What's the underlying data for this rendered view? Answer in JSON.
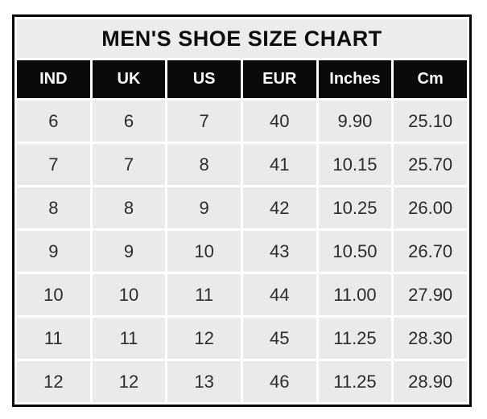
{
  "title": "MEN'S SHOE SIZE CHART",
  "colors": {
    "frame": "#060606",
    "title_bg": "#ececec",
    "header_bg": "#0a0a0a",
    "header_text": "#fdfdfd",
    "cell_bg": "#eaeaea",
    "grid": "#ffffff",
    "body_text": "#2b2b2b"
  },
  "chart_data": {
    "type": "table",
    "title": "MEN'S SHOE SIZE CHART",
    "columns": [
      "IND",
      "UK",
      "US",
      "EUR",
      "Inches",
      "Cm"
    ],
    "rows": [
      [
        "6",
        "6",
        "7",
        "40",
        "9.90",
        "25.10"
      ],
      [
        "7",
        "7",
        "8",
        "41",
        "10.15",
        "25.70"
      ],
      [
        "8",
        "8",
        "9",
        "42",
        "10.25",
        "26.00"
      ],
      [
        "9",
        "9",
        "10",
        "43",
        "10.50",
        "26.70"
      ],
      [
        "10",
        "10",
        "11",
        "44",
        "11.00",
        "27.90"
      ],
      [
        "11",
        "11",
        "12",
        "45",
        "11.25",
        "28.30"
      ],
      [
        "12",
        "12",
        "13",
        "46",
        "11.25",
        "28.90"
      ]
    ],
    "layout": {
      "grid": "white 3px separators",
      "legend": "none",
      "header_style": "black background, white bold text"
    }
  }
}
